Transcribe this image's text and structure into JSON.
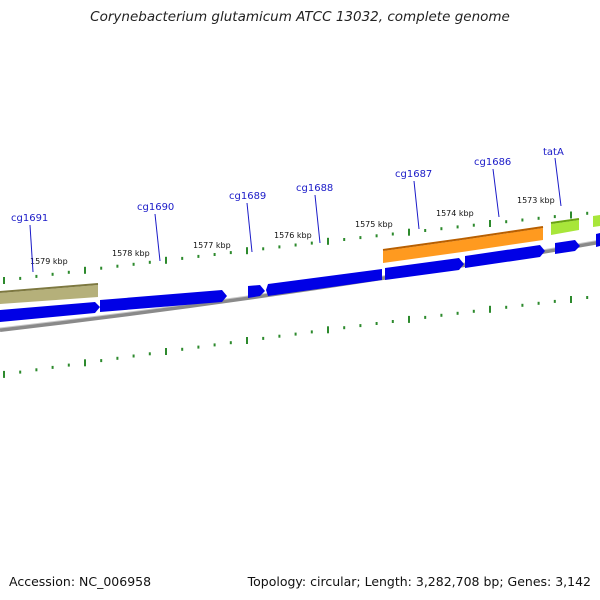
{
  "title": "Corynebacterium glutamicum ATCC 13032, complete genome",
  "footer": {
    "accession": "Accession: NC_006958",
    "summary": "Topology: circular; Length: 3,282,708 bp; Genes: 3,142"
  },
  "kbp_labels": [
    "1579 kbp",
    "1578 kbp",
    "1577 kbp",
    "1576 kbp",
    "1575 kbp",
    "1574 kbp",
    "1573 kbp"
  ],
  "gene_labels": [
    "cg1691",
    "cg1690",
    "cg1689",
    "cg1688",
    "cg1687",
    "cg1686",
    "tatA"
  ],
  "colors": {
    "cds_blue": "#0000e6",
    "olive": "#b5b07a",
    "orange": "#ff9a1f",
    "lime": "#a8e63a",
    "backbone": "#8a8a8a",
    "tick_green": "#2d8a2d",
    "label_blue": "#1a1ac8"
  }
}
